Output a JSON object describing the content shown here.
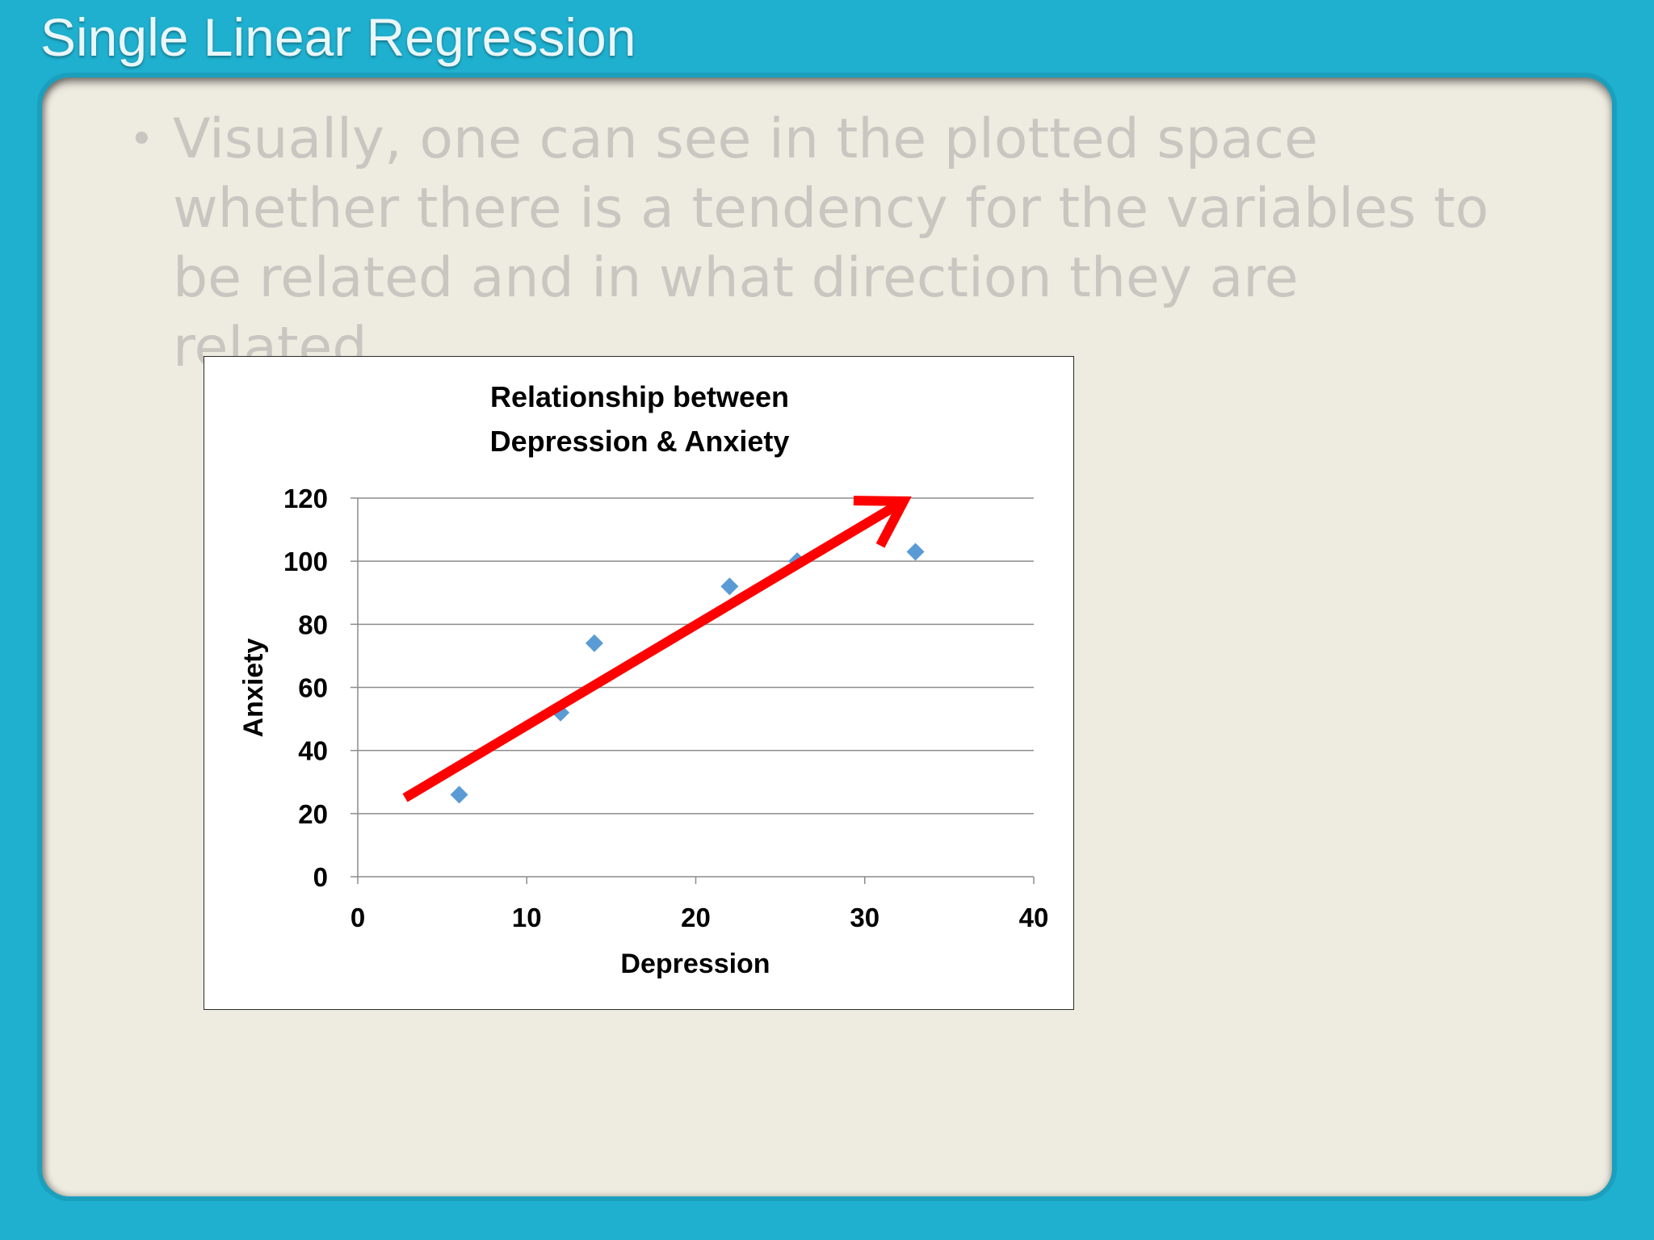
{
  "slide": {
    "title": "Single Linear Regression",
    "bullet_marker": "•",
    "bullet_text": "Visually, one can see in the plotted space whether there is a tendency for the variables to be related and in what direction they are related."
  },
  "colors": {
    "frame": "#1fb0cf",
    "panel": "#eeebe0",
    "bullet_text": "#c8c6c0",
    "points": "#5b9bd5",
    "arrow": "#ff0000",
    "gridline": "#8c8c8c"
  },
  "chart_data": {
    "type": "scatter",
    "title": [
      "Relationship between",
      "Depression & Anxiety"
    ],
    "xlabel": "Depression",
    "ylabel": "Anxiety",
    "xlim": [
      0,
      40
    ],
    "ylim": [
      0,
      120
    ],
    "xticks": [
      0,
      10,
      20,
      30,
      40
    ],
    "yticks": [
      0,
      20,
      40,
      60,
      80,
      100,
      120
    ],
    "grid": "horizontal",
    "legend": "none",
    "marker": "diamond",
    "series": [
      {
        "x": [
          6,
          12,
          14,
          22,
          26,
          33
        ],
        "y": [
          26,
          52,
          74,
          92,
          100,
          103
        ]
      }
    ],
    "annotations": [
      {
        "type": "arrow",
        "from": [
          2.8,
          25
        ],
        "to": [
          32.3,
          119
        ]
      }
    ]
  }
}
